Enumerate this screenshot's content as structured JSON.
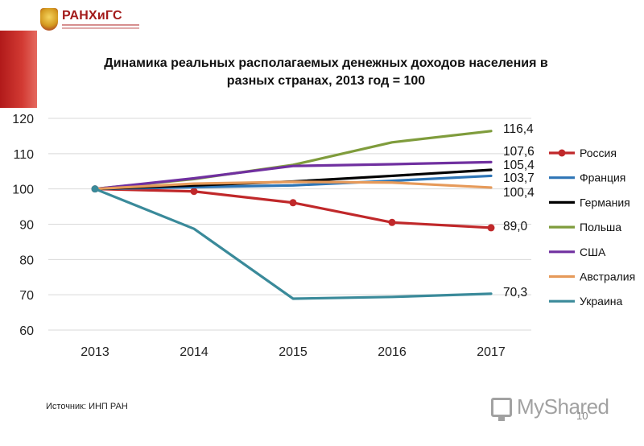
{
  "header": {
    "logo_text": "РАНХиГС"
  },
  "footer": {
    "source": "Источник: ИНП РАН",
    "watermark": "MyShared",
    "page_number": "10"
  },
  "colors": {
    "accent_red": "#c0282a"
  },
  "chart_data": {
    "type": "line",
    "title_line1": "Динамика реальных располагаемых денежных доходов населения в",
    "title_line2": "разных странах, 2013 год = 100",
    "categories": [
      "2013",
      "2014",
      "2015",
      "2016",
      "2017"
    ],
    "ylim": [
      60,
      120
    ],
    "yticks": [
      "60",
      "70",
      "80",
      "90",
      "100",
      "110",
      "120"
    ],
    "grid": true,
    "legend_position": "right",
    "series": [
      {
        "name": "Россия",
        "color": "#c0282a",
        "markers": true,
        "values": [
          100,
          99.3,
          96.1,
          90.5,
          89.0
        ],
        "end_label": "89,0"
      },
      {
        "name": "Франция",
        "color": "#2e75b6",
        "markers": false,
        "values": [
          100,
          100.5,
          101.0,
          102.3,
          103.7
        ],
        "end_label": "103,7"
      },
      {
        "name": "Германия",
        "color": "#000000",
        "markers": false,
        "values": [
          100,
          101.0,
          102.1,
          103.7,
          105.4
        ],
        "end_label": "105,4"
      },
      {
        "name": "Польша",
        "color": "#7f9c3c",
        "markers": false,
        "values": [
          100,
          102.8,
          106.8,
          113.2,
          116.4
        ],
        "end_label": "116,4"
      },
      {
        "name": "США",
        "color": "#7030a0",
        "markers": false,
        "values": [
          100,
          103.0,
          106.5,
          107.0,
          107.6
        ],
        "end_label": "107,6"
      },
      {
        "name": "Австралия",
        "color": "#e69a5a",
        "markers": false,
        "values": [
          100,
          101.5,
          102.0,
          101.8,
          100.4
        ],
        "end_label": "100,4"
      },
      {
        "name": "Украина",
        "color": "#3a8a9a",
        "markers": false,
        "values": [
          100,
          88.7,
          68.9,
          69.4,
          70.3
        ],
        "end_label": "70,3"
      }
    ]
  }
}
